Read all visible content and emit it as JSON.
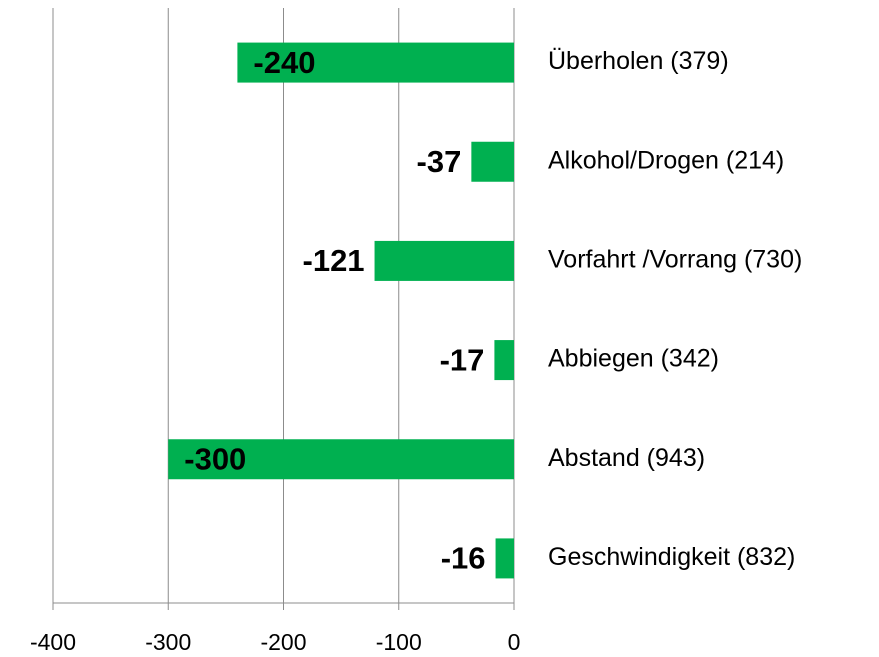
{
  "chart_data": {
    "type": "bar",
    "orientation": "horizontal",
    "categories": [
      "Überholen (379)",
      "Alkohol/Drogen (214)",
      "Vorfahrt /Vorrang (730)",
      "Abbiegen (342)",
      "Abstand (943)",
      "Geschwindigkeit (832)"
    ],
    "values": [
      -240,
      -37,
      -121,
      -17,
      -300,
      -16
    ],
    "color": "#00b050",
    "xlim": [
      -400,
      0
    ],
    "xticks": [
      -400,
      -300,
      -200,
      -100,
      0
    ],
    "grid": true
  }
}
